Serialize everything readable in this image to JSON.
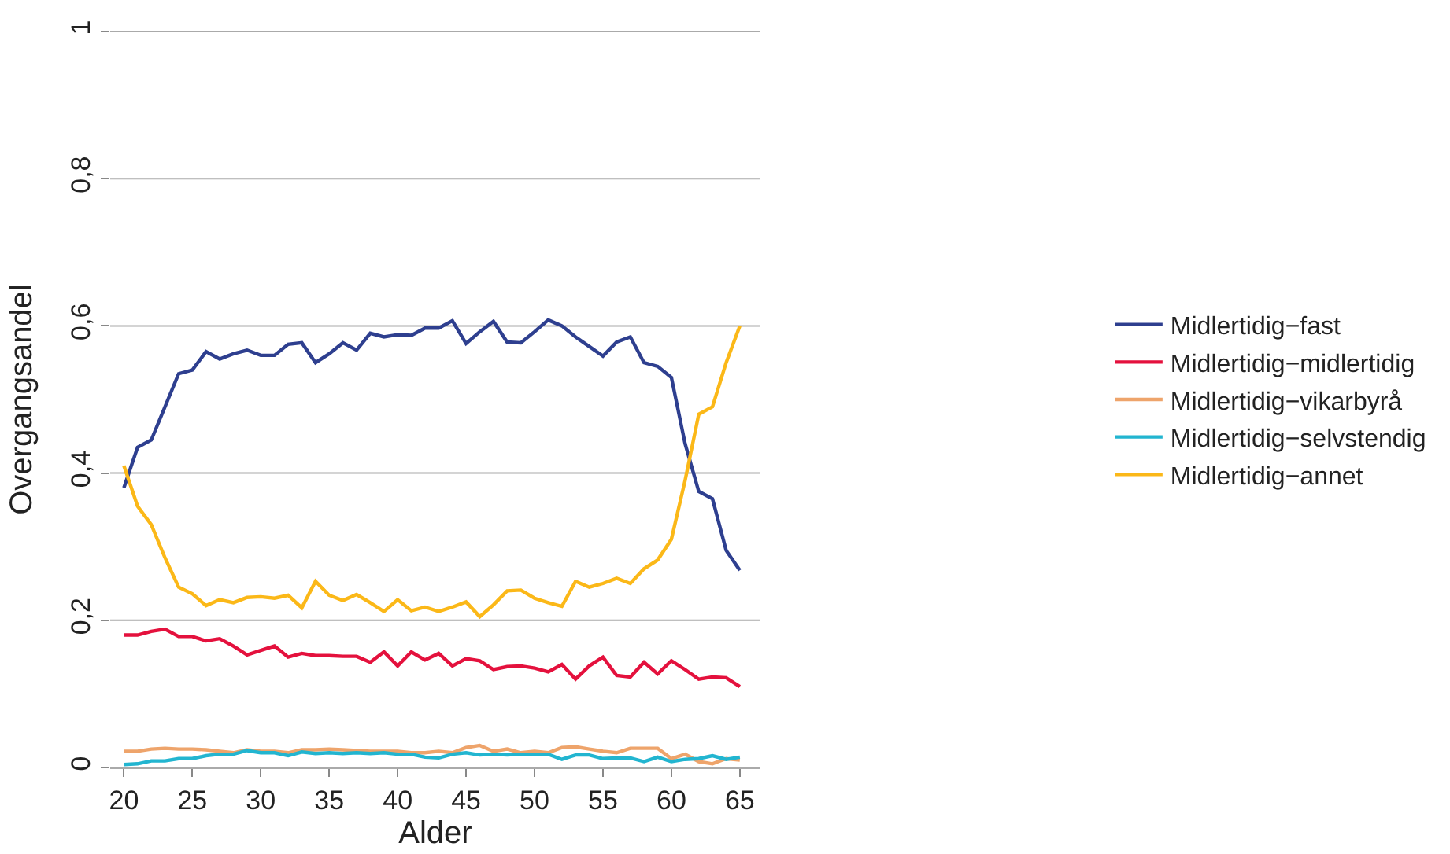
{
  "chart_data": {
    "type": "line",
    "xlabel": "Alder",
    "ylabel": "Overgangsandel",
    "x": [
      20,
      21,
      22,
      23,
      24,
      25,
      26,
      27,
      28,
      29,
      30,
      31,
      32,
      33,
      34,
      35,
      36,
      37,
      38,
      39,
      40,
      41,
      42,
      43,
      44,
      45,
      46,
      47,
      48,
      49,
      50,
      51,
      52,
      53,
      54,
      55,
      56,
      57,
      58,
      59,
      60,
      61,
      62,
      63,
      64,
      65
    ],
    "xlim": [
      19,
      66.5
    ],
    "xticks": [
      20,
      25,
      30,
      35,
      40,
      45,
      50,
      55,
      60,
      65
    ],
    "ylim": [
      0,
      1
    ],
    "yticks": [
      0,
      {
        "value": 0.2,
        "label": "0,2"
      },
      {
        "value": 0.4,
        "label": "0,4"
      },
      {
        "value": 0.6,
        "label": "0,6"
      },
      {
        "value": 0.8,
        "label": "0,8"
      },
      1
    ],
    "grid": "y",
    "legend": "right",
    "line_style": "solid",
    "marker": "none",
    "series": [
      {
        "name": "Midlertidig−fast",
        "color": "#2e3f8f",
        "values": [
          0.38,
          0.435,
          0.445,
          0.49,
          0.535,
          0.54,
          0.565,
          0.555,
          0.562,
          0.567,
          0.56,
          0.56,
          0.575,
          0.577,
          0.55,
          0.562,
          0.577,
          0.567,
          0.59,
          0.585,
          0.588,
          0.587,
          0.597,
          0.597,
          0.607,
          0.576,
          0.592,
          0.606,
          0.578,
          0.577,
          0.592,
          0.608,
          0.6,
          0.585,
          0.572,
          0.559,
          0.578,
          0.585,
          0.55,
          0.545,
          0.53,
          0.44,
          0.375,
          0.365,
          0.295,
          0.268
        ]
      },
      {
        "name": "Midlertidig−midlertidig",
        "color": "#e4113d",
        "values": [
          0.18,
          0.18,
          0.185,
          0.188,
          0.178,
          0.178,
          0.172,
          0.175,
          0.165,
          0.153,
          0.159,
          0.165,
          0.15,
          0.155,
          0.152,
          0.152,
          0.151,
          0.151,
          0.143,
          0.157,
          0.138,
          0.157,
          0.146,
          0.155,
          0.138,
          0.148,
          0.145,
          0.133,
          0.137,
          0.138,
          0.135,
          0.13,
          0.14,
          0.12,
          0.138,
          0.15,
          0.125,
          0.123,
          0.143,
          0.127,
          0.145,
          0.133,
          0.12,
          0.123,
          0.122,
          0.11
        ]
      },
      {
        "name": "Midlertidig−vikarbyrå",
        "color": "#eea46b",
        "values": [
          0.022,
          0.022,
          0.025,
          0.026,
          0.025,
          0.025,
          0.024,
          0.022,
          0.02,
          0.024,
          0.022,
          0.022,
          0.02,
          0.024,
          0.024,
          0.025,
          0.024,
          0.023,
          0.022,
          0.022,
          0.022,
          0.02,
          0.02,
          0.022,
          0.02,
          0.027,
          0.03,
          0.022,
          0.025,
          0.02,
          0.022,
          0.02,
          0.027,
          0.028,
          0.025,
          0.022,
          0.02,
          0.026,
          0.026,
          0.026,
          0.012,
          0.018,
          0.008,
          0.005,
          0.012,
          0.01
        ]
      },
      {
        "name": "Midlertidig−selvstendig",
        "color": "#22b5d0",
        "values": [
          0.004,
          0.005,
          0.009,
          0.009,
          0.012,
          0.012,
          0.016,
          0.018,
          0.018,
          0.023,
          0.02,
          0.02,
          0.016,
          0.021,
          0.019,
          0.02,
          0.019,
          0.02,
          0.019,
          0.02,
          0.018,
          0.018,
          0.014,
          0.013,
          0.018,
          0.02,
          0.017,
          0.018,
          0.017,
          0.018,
          0.018,
          0.018,
          0.011,
          0.017,
          0.017,
          0.012,
          0.013,
          0.013,
          0.008,
          0.014,
          0.008,
          0.011,
          0.012,
          0.016,
          0.011,
          0.014
        ]
      },
      {
        "name": "Midlertidig−annet",
        "color": "#fbb818",
        "values": [
          0.41,
          0.355,
          0.33,
          0.285,
          0.245,
          0.236,
          0.22,
          0.228,
          0.224,
          0.231,
          0.232,
          0.23,
          0.234,
          0.217,
          0.253,
          0.234,
          0.227,
          0.235,
          0.224,
          0.212,
          0.228,
          0.213,
          0.218,
          0.212,
          0.218,
          0.225,
          0.205,
          0.221,
          0.24,
          0.241,
          0.23,
          0.224,
          0.219,
          0.253,
          0.245,
          0.25,
          0.257,
          0.25,
          0.27,
          0.282,
          0.31,
          0.39,
          0.48,
          0.49,
          0.55,
          0.6
        ]
      }
    ]
  }
}
